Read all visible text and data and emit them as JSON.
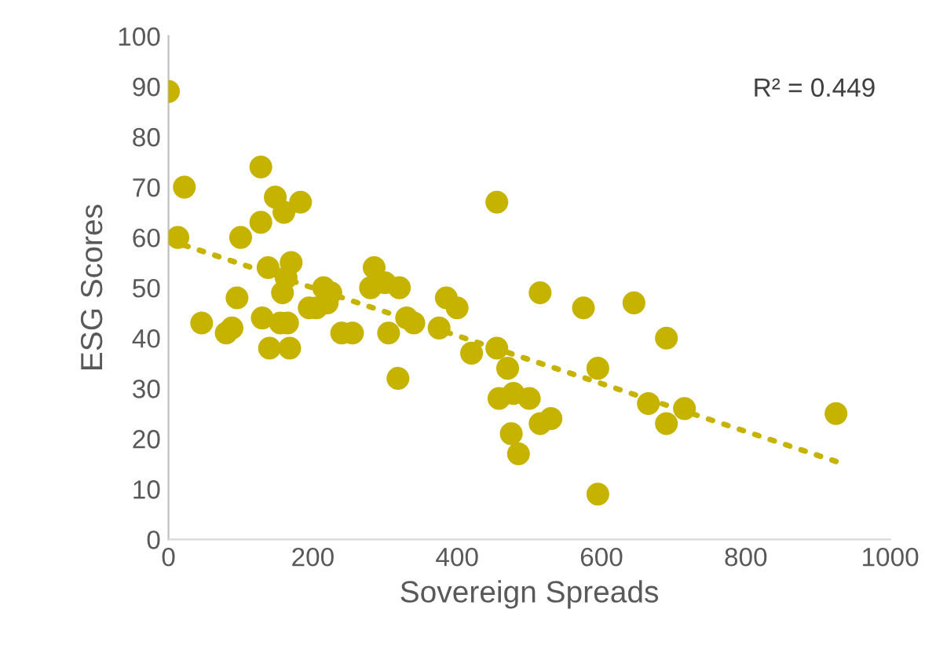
{
  "chart_data": {
    "type": "scatter",
    "xlabel": "Sovereign Spreads",
    "ylabel": "ESG Scores",
    "xlim": [
      0,
      1000
    ],
    "xticks": [
      0,
      200,
      400,
      600,
      800,
      1000
    ],
    "ylim": [
      0,
      100
    ],
    "yticks": [
      0,
      10,
      20,
      30,
      40,
      50,
      60,
      70,
      80,
      90,
      100
    ],
    "grid": false,
    "annotations": [
      "R² = 0.449"
    ],
    "series": [
      {
        "marker": "circle",
        "color": "#c5b300",
        "x": [
          0,
          22,
          13,
          46,
          80,
          88,
          95,
          100,
          128,
          128,
          130,
          138,
          140,
          148,
          155,
          158,
          160,
          163,
          165,
          168,
          170,
          183,
          195,
          205,
          215,
          225,
          220,
          240,
          255,
          280,
          285,
          300,
          305,
          318,
          320,
          330,
          340,
          375,
          385,
          400,
          420,
          455,
          455,
          458,
          470,
          475,
          478,
          485,
          500,
          515,
          515,
          530,
          575,
          595,
          595,
          645,
          665,
          690,
          690,
          715,
          925
        ],
        "values": [
          89,
          70,
          60,
          43,
          41,
          42,
          48,
          60,
          74,
          63,
          44,
          54,
          38,
          68,
          43,
          49,
          65,
          52,
          43,
          38,
          55,
          67,
          46,
          46,
          50,
          49,
          47,
          41,
          41,
          50,
          54,
          51,
          41,
          32,
          50,
          44,
          43,
          42,
          48,
          46,
          37,
          67,
          38,
          28,
          34,
          21,
          29,
          17,
          28,
          49,
          23,
          24,
          46,
          34,
          9,
          47,
          27,
          40,
          23,
          26,
          25
        ]
      },
      {
        "type": "line",
        "color": "#c5b300",
        "line_style": "dotted",
        "marker": "none",
        "x": [
          0,
          925
        ],
        "values": [
          59.5,
          15.5
        ]
      }
    ]
  }
}
